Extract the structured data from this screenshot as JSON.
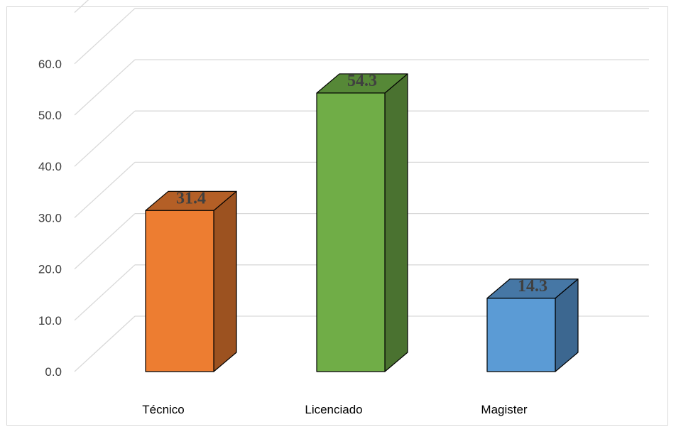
{
  "chart_data": {
    "type": "bar",
    "categories": [
      "Técnico",
      "Licenciado",
      "Magister"
    ],
    "values": [
      31.4,
      54.3,
      14.3
    ],
    "value_labels": [
      "31.4",
      "54.3",
      "14.3"
    ],
    "yticks": [
      "0.0",
      "10.0",
      "20.0",
      "30.0",
      "40.0",
      "50.0",
      "60.0",
      ""
    ],
    "ylim": [
      0,
      70
    ],
    "grid": true,
    "legend": "none",
    "colors": {
      "front": [
        "#ed7d31",
        "#70ad47",
        "#5b9bd5"
      ],
      "side": [
        "#9c5220",
        "#4a7230",
        "#3c6790"
      ],
      "top": [
        "#b45f26",
        "#568837",
        "#4677a5"
      ],
      "grid": "#d9d9d9"
    }
  }
}
